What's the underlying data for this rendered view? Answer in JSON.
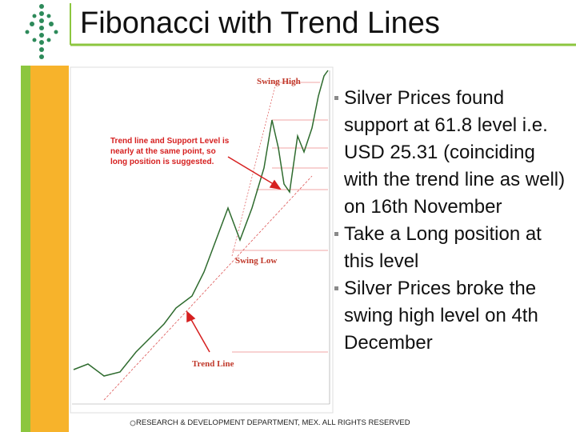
{
  "title": "Fibonacci with Trend Lines",
  "bullets": [
    "Silver Prices found support at 61.8 level i.e. USD 25.31 (coinciding with the trend line as well) on 16th November",
    "Take a Long position at this level",
    "Silver Prices broke the swing high level on 4th December"
  ],
  "footer": "RESEARCH & DEVELOPMENT DEPARTMENT, MEX. ALL RIGHTS RESERVED",
  "chart": {
    "annotations": {
      "swing_high": "Swing High",
      "swing_low": "Swing Low",
      "trend_line": "Trend Line",
      "note": "Trend line and Support Level is nearly at the same point, so long position is suggested."
    }
  }
}
